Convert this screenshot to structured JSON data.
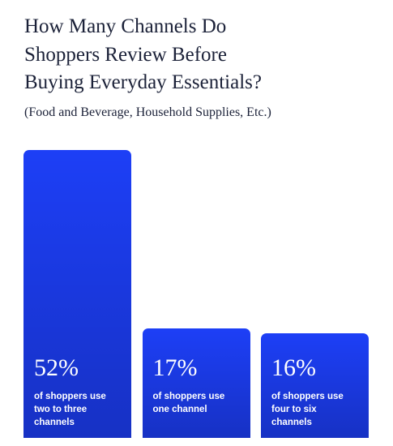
{
  "chart_data": {
    "type": "bar",
    "title": "How Many Channels Do Shoppers Review Before Buying Everyday Essentials?",
    "subtitle": "(Food and Beverage, Household Supplies, Etc.)",
    "categories": [
      "of shoppers use two to three channels",
      "of shoppers use one channel",
      "of shoppers use four to six channels"
    ],
    "values": [
      52,
      17,
      16
    ],
    "value_labels": [
      "52%",
      "17%",
      "16%"
    ],
    "color": "#1d3ff6"
  }
}
